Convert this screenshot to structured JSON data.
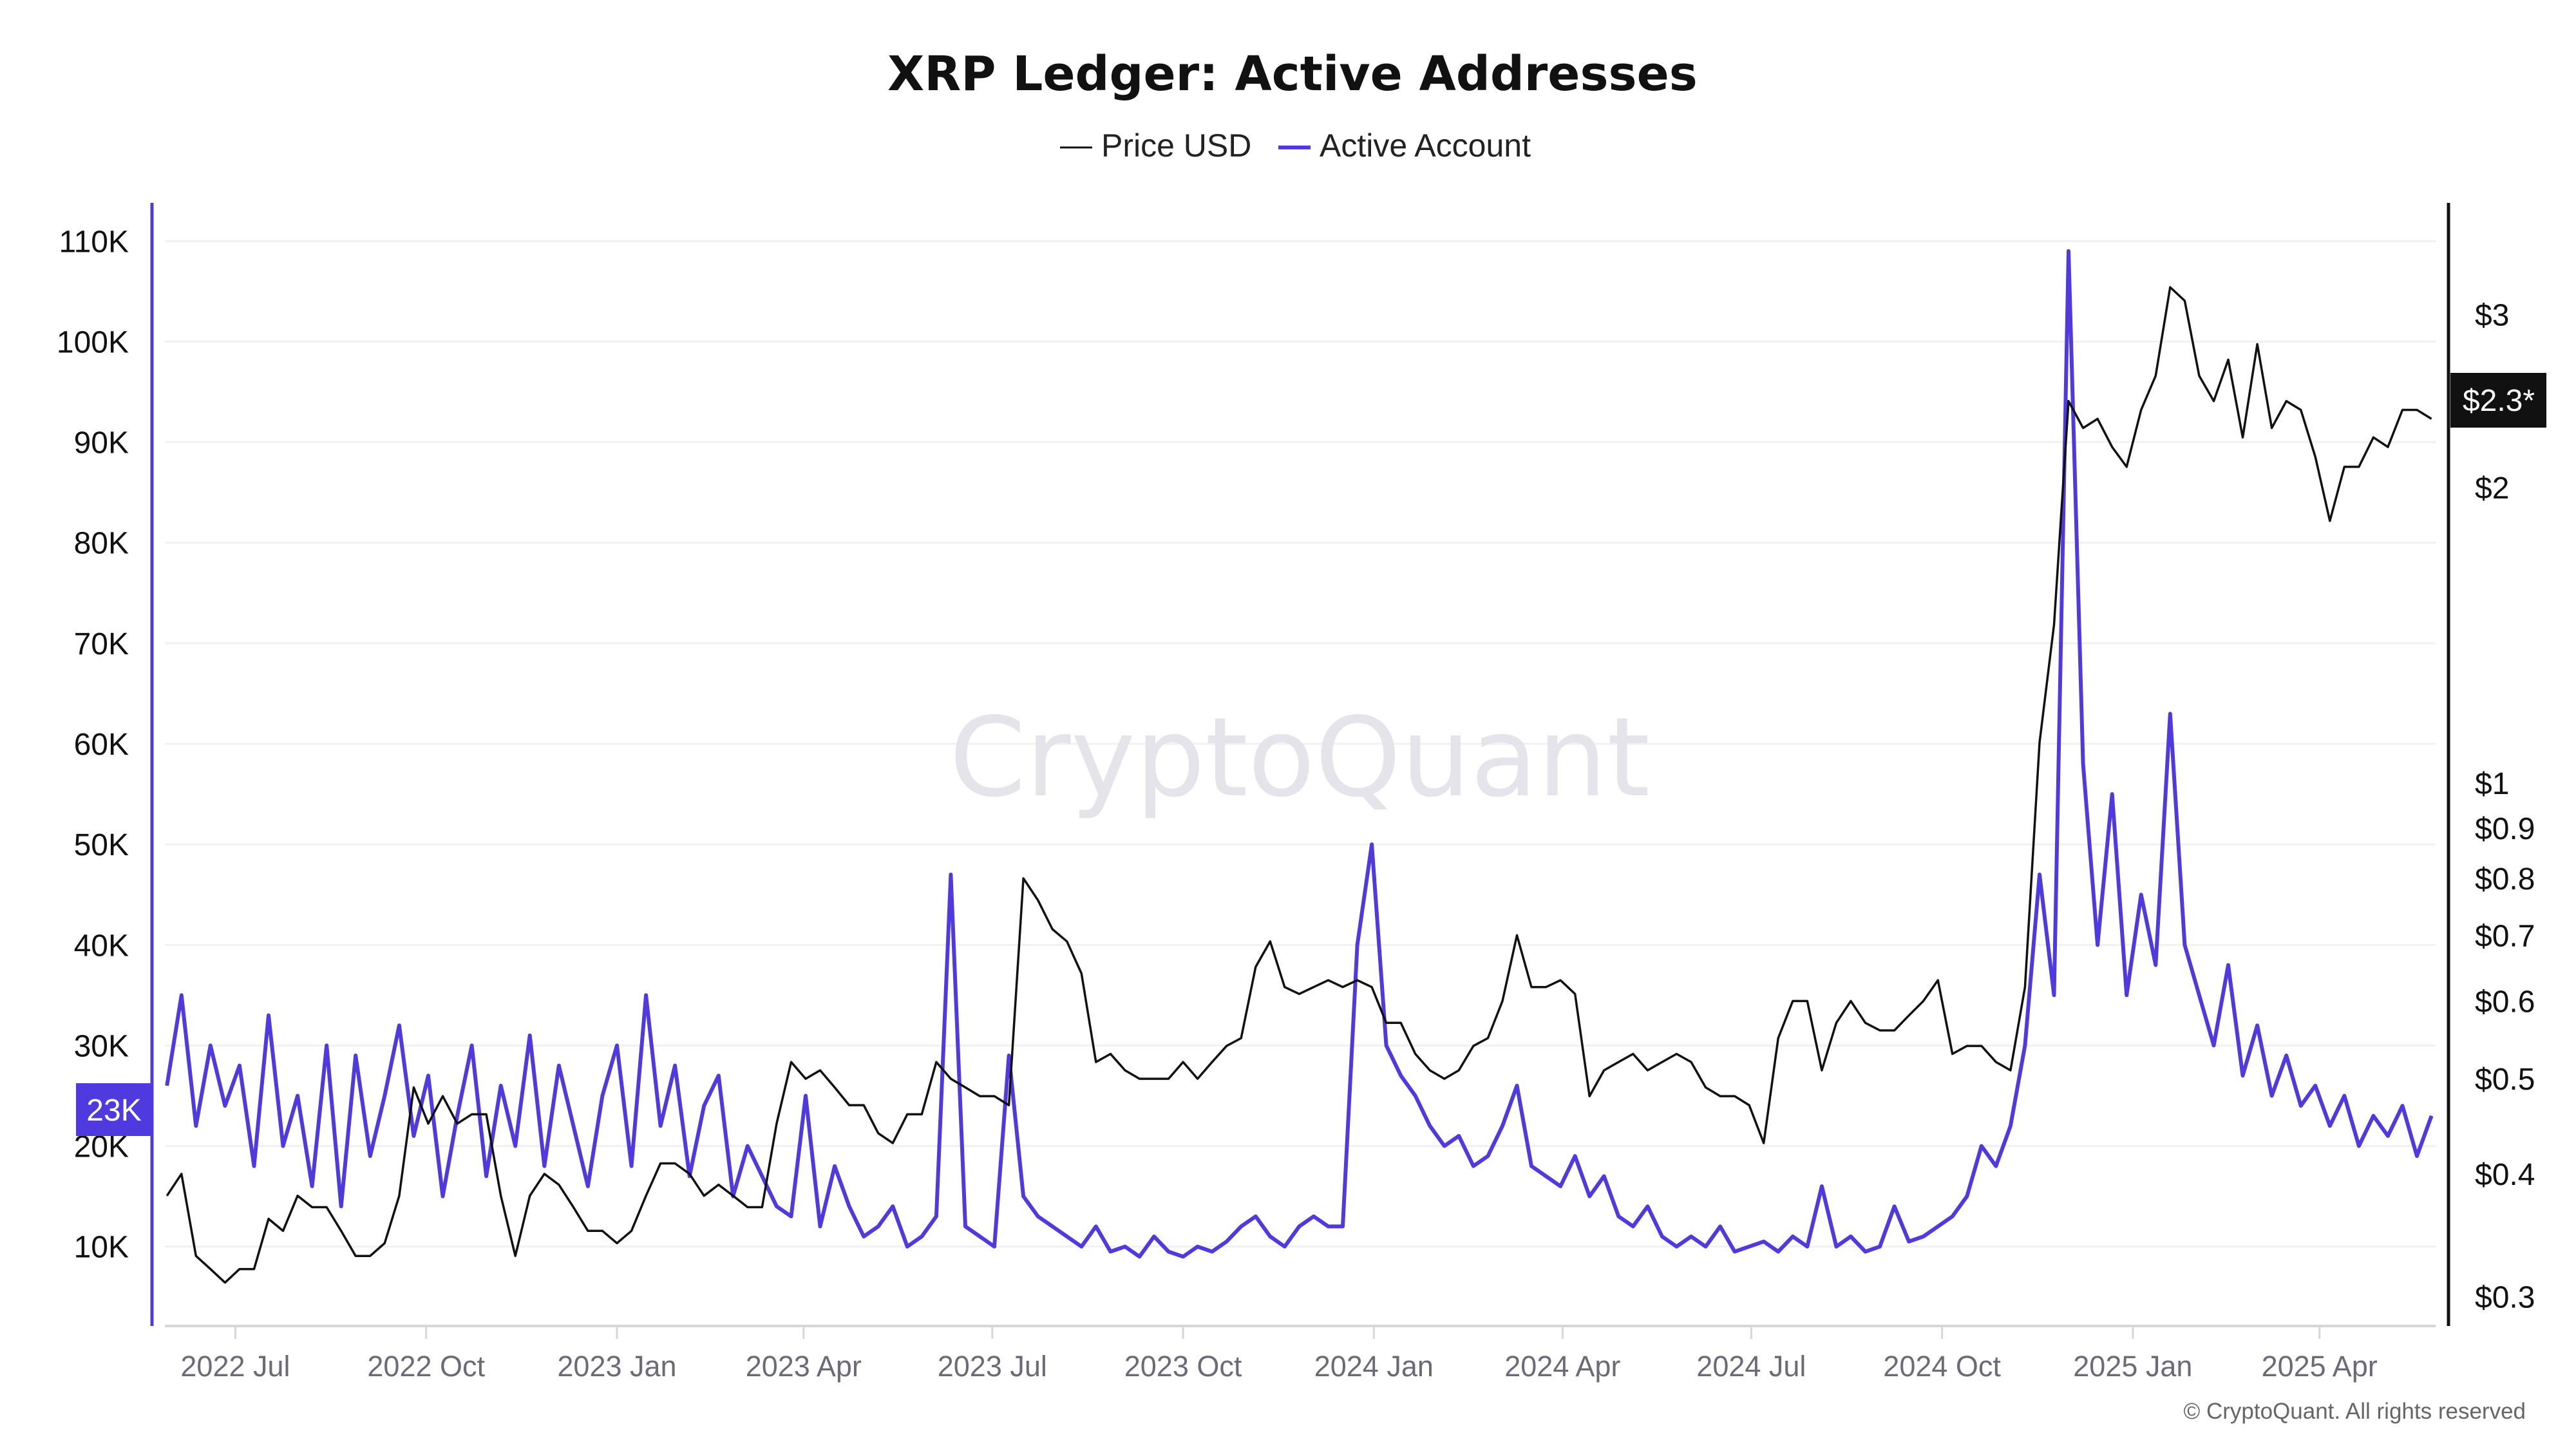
{
  "title": "XRP Ledger: Active Addresses",
  "legend": [
    {
      "label": "Price USD",
      "color": "#111111"
    },
    {
      "label": "Active Account",
      "color": "#4f3ae0"
    }
  ],
  "watermark": "CryptoQuant",
  "footer": "© CryptoQuant. All rights reserved",
  "chart_data": {
    "type": "line",
    "title": "XRP Ledger: Active Addresses",
    "grid": true,
    "legend_position": "top-center",
    "x_tick_labels": [
      "2022 Jul",
      "2022 Oct",
      "2023 Jan",
      "2023 Apr",
      "2023 Jul",
      "2023 Oct",
      "2024 Jan",
      "2024 Apr",
      "2024 Jul",
      "2024 Oct",
      "2025 Jan",
      "2025 Apr"
    ],
    "x_tick_dates": [
      "2022-07-01",
      "2022-10-01",
      "2023-01-01",
      "2023-04-01",
      "2023-07-01",
      "2023-10-01",
      "2024-01-01",
      "2024-04-01",
      "2024-07-01",
      "2024-10-01",
      "2025-01-01",
      "2025-04-01"
    ],
    "xlim": [
      "2022-05-28",
      "2025-05-27"
    ],
    "y_left": {
      "series": "Active Account",
      "ylim": [
        2100,
        113800
      ],
      "tick_values": [
        10000,
        20000,
        30000,
        40000,
        50000,
        60000,
        70000,
        80000,
        90000,
        100000,
        110000
      ],
      "tick_labels": [
        "10K",
        "20K",
        "30K",
        "40K",
        "50K",
        "60K",
        "70K",
        "80K",
        "90K",
        "100K",
        "110K"
      ],
      "current_label": "23K",
      "color": "#4f3ae0"
    },
    "y_right": {
      "series": "Price USD",
      "scale": "log",
      "ylim": [
        0.28,
        3.9
      ],
      "tick_values": [
        0.3,
        0.4,
        0.5,
        0.6,
        0.7,
        0.8,
        0.9,
        1,
        2,
        3
      ],
      "tick_labels": [
        "$0.3",
        "$0.4",
        "$0.5",
        "$0.6",
        "$0.7",
        "$0.8",
        "$0.9",
        "$1",
        "$2",
        "$3"
      ],
      "current_label": "$2.3*",
      "color": "#111111"
    },
    "x": [
      "2022-05-29",
      "2022-06-05",
      "2022-06-12",
      "2022-06-19",
      "2022-06-26",
      "2022-07-03",
      "2022-07-10",
      "2022-07-17",
      "2022-07-24",
      "2022-07-31",
      "2022-08-07",
      "2022-08-14",
      "2022-08-21",
      "2022-08-28",
      "2022-09-04",
      "2022-09-11",
      "2022-09-18",
      "2022-09-25",
      "2022-10-02",
      "2022-10-09",
      "2022-10-16",
      "2022-10-23",
      "2022-10-30",
      "2022-11-06",
      "2022-11-13",
      "2022-11-20",
      "2022-11-27",
      "2022-12-04",
      "2022-12-11",
      "2022-12-18",
      "2022-12-25",
      "2023-01-01",
      "2023-01-08",
      "2023-01-15",
      "2023-01-22",
      "2023-01-29",
      "2023-02-05",
      "2023-02-12",
      "2023-02-19",
      "2023-02-26",
      "2023-03-05",
      "2023-03-12",
      "2023-03-19",
      "2023-03-26",
      "2023-04-02",
      "2023-04-09",
      "2023-04-16",
      "2023-04-23",
      "2023-04-30",
      "2023-05-07",
      "2023-05-14",
      "2023-05-21",
      "2023-05-28",
      "2023-06-04",
      "2023-06-11",
      "2023-06-18",
      "2023-06-25",
      "2023-07-02",
      "2023-07-09",
      "2023-07-16",
      "2023-07-23",
      "2023-07-30",
      "2023-08-06",
      "2023-08-13",
      "2023-08-20",
      "2023-08-27",
      "2023-09-03",
      "2023-09-10",
      "2023-09-17",
      "2023-09-24",
      "2023-10-01",
      "2023-10-08",
      "2023-10-15",
      "2023-10-22",
      "2023-10-29",
      "2023-11-05",
      "2023-11-12",
      "2023-11-19",
      "2023-11-26",
      "2023-12-03",
      "2023-12-10",
      "2023-12-17",
      "2023-12-24",
      "2023-12-31",
      "2024-01-07",
      "2024-01-14",
      "2024-01-21",
      "2024-01-28",
      "2024-02-04",
      "2024-02-11",
      "2024-02-18",
      "2024-02-25",
      "2024-03-03",
      "2024-03-10",
      "2024-03-17",
      "2024-03-24",
      "2024-03-31",
      "2024-04-07",
      "2024-04-14",
      "2024-04-21",
      "2024-04-28",
      "2024-05-05",
      "2024-05-12",
      "2024-05-19",
      "2024-05-26",
      "2024-06-02",
      "2024-06-09",
      "2024-06-16",
      "2024-06-23",
      "2024-06-30",
      "2024-07-07",
      "2024-07-14",
      "2024-07-21",
      "2024-07-28",
      "2024-08-04",
      "2024-08-11",
      "2024-08-18",
      "2024-08-25",
      "2024-09-01",
      "2024-09-08",
      "2024-09-15",
      "2024-09-22",
      "2024-09-29",
      "2024-10-06",
      "2024-10-13",
      "2024-10-20",
      "2024-10-27",
      "2024-11-03",
      "2024-11-10",
      "2024-11-17",
      "2024-11-24",
      "2024-12-01",
      "2024-12-08",
      "2024-12-15",
      "2024-12-22",
      "2024-12-29",
      "2025-01-05",
      "2025-01-12",
      "2025-01-19",
      "2025-01-26",
      "2025-02-02",
      "2025-02-09",
      "2025-02-16",
      "2025-02-23",
      "2025-03-02",
      "2025-03-09",
      "2025-03-16",
      "2025-03-23",
      "2025-03-30",
      "2025-04-06",
      "2025-04-13",
      "2025-04-20",
      "2025-04-27",
      "2025-05-04",
      "2025-05-11",
      "2025-05-18",
      "2025-05-25"
    ],
    "series": [
      {
        "name": "Price USD",
        "axis": "right",
        "color": "#111111",
        "values": [
          0.38,
          0.4,
          0.33,
          0.32,
          0.31,
          0.32,
          0.32,
          0.36,
          0.35,
          0.38,
          0.37,
          0.37,
          0.35,
          0.33,
          0.33,
          0.34,
          0.38,
          0.49,
          0.45,
          0.48,
          0.45,
          0.46,
          0.46,
          0.38,
          0.33,
          0.38,
          0.4,
          0.39,
          0.37,
          0.35,
          0.35,
          0.34,
          0.35,
          0.38,
          0.41,
          0.41,
          0.4,
          0.38,
          0.39,
          0.38,
          0.37,
          0.37,
          0.45,
          0.52,
          0.5,
          0.51,
          0.49,
          0.47,
          0.47,
          0.44,
          0.43,
          0.46,
          0.46,
          0.52,
          0.5,
          0.49,
          0.48,
          0.48,
          0.47,
          0.8,
          0.76,
          0.71,
          0.69,
          0.64,
          0.52,
          0.53,
          0.51,
          0.5,
          0.5,
          0.5,
          0.52,
          0.5,
          0.52,
          0.54,
          0.55,
          0.65,
          0.69,
          0.62,
          0.61,
          0.62,
          0.63,
          0.62,
          0.63,
          0.62,
          0.57,
          0.57,
          0.53,
          0.51,
          0.5,
          0.51,
          0.54,
          0.55,
          0.6,
          0.7,
          0.62,
          0.62,
          0.63,
          0.61,
          0.48,
          0.51,
          0.52,
          0.53,
          0.51,
          0.52,
          0.53,
          0.52,
          0.49,
          0.48,
          0.48,
          0.47,
          0.43,
          0.55,
          0.6,
          0.6,
          0.51,
          0.57,
          0.6,
          0.57,
          0.56,
          0.56,
          0.58,
          0.6,
          0.63,
          0.53,
          0.54,
          0.54,
          0.52,
          0.51,
          0.62,
          1.1,
          1.45,
          2.45,
          2.3,
          2.35,
          2.2,
          2.1,
          2.4,
          2.6,
          3.2,
          3.1,
          2.6,
          2.45,
          2.7,
          2.25,
          2.8,
          2.3,
          2.45,
          2.4,
          2.15,
          1.85,
          2.1,
          2.1,
          2.25,
          2.2,
          2.4,
          2.4,
          2.35
        ]
      },
      {
        "name": "Active Account",
        "axis": "left",
        "color": "#4f3ae0",
        "values": [
          26000,
          35000,
          22000,
          30000,
          24000,
          28000,
          18000,
          33000,
          20000,
          25000,
          16000,
          30000,
          14000,
          29000,
          19000,
          25000,
          32000,
          21000,
          27000,
          15000,
          23000,
          30000,
          17000,
          26000,
          20000,
          31000,
          18000,
          28000,
          22000,
          16000,
          25000,
          30000,
          18000,
          35000,
          22000,
          28000,
          17000,
          24000,
          27000,
          15000,
          20000,
          17000,
          14000,
          13000,
          25000,
          12000,
          18000,
          14000,
          11000,
          12000,
          14000,
          10000,
          11000,
          13000,
          47000,
          12000,
          11000,
          10000,
          29000,
          15000,
          13000,
          12000,
          11000,
          10000,
          12000,
          9500,
          10000,
          9000,
          11000,
          9500,
          9000,
          10000,
          9500,
          10500,
          12000,
          13000,
          11000,
          10000,
          12000,
          13000,
          12000,
          12000,
          40000,
          50000,
          30000,
          27000,
          25000,
          22000,
          20000,
          21000,
          18000,
          19000,
          22000,
          26000,
          18000,
          17000,
          16000,
          19000,
          15000,
          17000,
          13000,
          12000,
          14000,
          11000,
          10000,
          11000,
          10000,
          12000,
          9500,
          10000,
          10500,
          9500,
          11000,
          10000,
          16000,
          10000,
          11000,
          9500,
          10000,
          14000,
          10500,
          11000,
          12000,
          13000,
          15000,
          20000,
          18000,
          22000,
          30000,
          47000,
          35000,
          109000,
          58000,
          40000,
          55000,
          35000,
          45000,
          38000,
          63000,
          40000,
          35000,
          30000,
          38000,
          27000,
          32000,
          25000,
          29000,
          24000,
          26000,
          22000,
          25000,
          20000,
          23000,
          21000,
          24000,
          19000,
          23000
        ]
      }
    ]
  }
}
